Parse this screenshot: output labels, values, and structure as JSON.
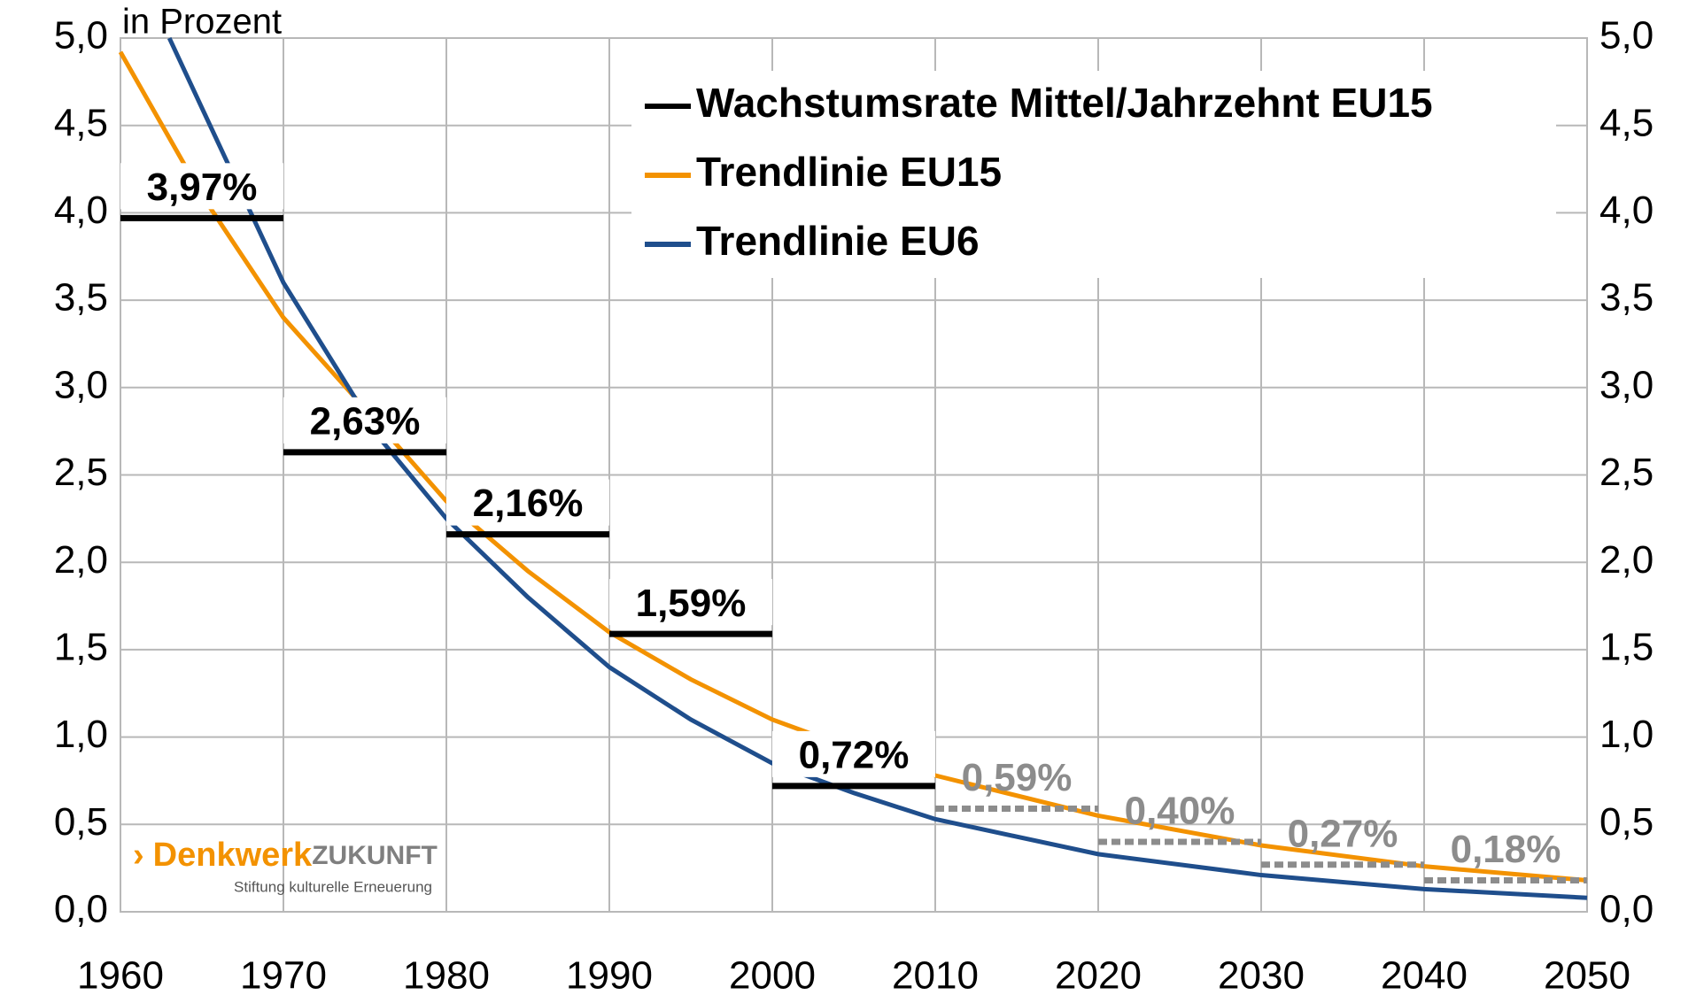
{
  "chart_data": {
    "type": "line",
    "ylabel": "in Prozent",
    "xlim": [
      1960,
      2050
    ],
    "ylim": [
      0,
      5
    ],
    "xticks": [
      1960,
      1970,
      1980,
      1990,
      2000,
      2010,
      2020,
      2030,
      2040,
      2050
    ],
    "yticks": [
      {
        "value": 0,
        "label": "0,0"
      },
      {
        "value": 0.5,
        "label": "0,5"
      },
      {
        "value": 1,
        "label": "1,0"
      },
      {
        "value": 1.5,
        "label": "1,5"
      },
      {
        "value": 2,
        "label": "2,0"
      },
      {
        "value": 2.5,
        "label": "2,5"
      },
      {
        "value": 3,
        "label": "3,0"
      },
      {
        "value": 3.5,
        "label": "3,5"
      },
      {
        "value": 4,
        "label": "4,0"
      },
      {
        "value": 4.5,
        "label": "4,5"
      },
      {
        "value": 5,
        "label": "5,0"
      }
    ],
    "grid": true,
    "legend": "upper right",
    "steps": {
      "name": "Wachstumsrate Mittel/Jahrzehnt EU15",
      "color": "#000000",
      "projection_color": "#8c8c8c",
      "x_start": [
        1960,
        1970,
        1980,
        1990,
        2000,
        2010,
        2020,
        2030,
        2040
      ],
      "x_end": [
        1970,
        1980,
        1990,
        2000,
        2010,
        2020,
        2030,
        2040,
        2050
      ],
      "values": [
        3.97,
        2.63,
        2.16,
        1.59,
        0.72,
        0.59,
        0.4,
        0.27,
        0.18
      ],
      "value_labels": [
        "3,97%",
        "2,63%",
        "2,16%",
        "1,59%",
        "0,72%",
        "0,59%",
        "0,40%",
        "0,27%",
        "0,18%"
      ],
      "dashed": [
        false,
        false,
        false,
        false,
        false,
        true,
        true,
        true,
        true
      ]
    },
    "series": [
      {
        "name": "Trendlinie EU15",
        "color": "#f39200",
        "x": [
          1960,
          1965,
          1970,
          1975,
          1980,
          1985,
          1990,
          1995,
          2000,
          2005,
          2010,
          2020,
          2030,
          2040,
          2050
        ],
        "values": [
          4.92,
          4.1,
          3.4,
          2.88,
          2.35,
          1.95,
          1.6,
          1.33,
          1.1,
          0.93,
          0.78,
          0.55,
          0.38,
          0.26,
          0.18
        ]
      },
      {
        "name": "Trendlinie EU6",
        "color": "#1f4e8c",
        "x": [
          1963,
          1966,
          1970,
          1976,
          1980,
          1985,
          1990,
          1995,
          2000,
          2005,
          2010,
          2020,
          2030,
          2040,
          2050
        ],
        "values": [
          5.0,
          4.4,
          3.6,
          2.7,
          2.25,
          1.8,
          1.4,
          1.1,
          0.85,
          0.68,
          0.53,
          0.33,
          0.21,
          0.13,
          0.08
        ]
      }
    ],
    "logo": {
      "mark": "›",
      "name": "Denkwerk",
      "suffix": "ZUKUNFT",
      "tagline": "Stiftung kulturelle Erneuerung"
    }
  }
}
